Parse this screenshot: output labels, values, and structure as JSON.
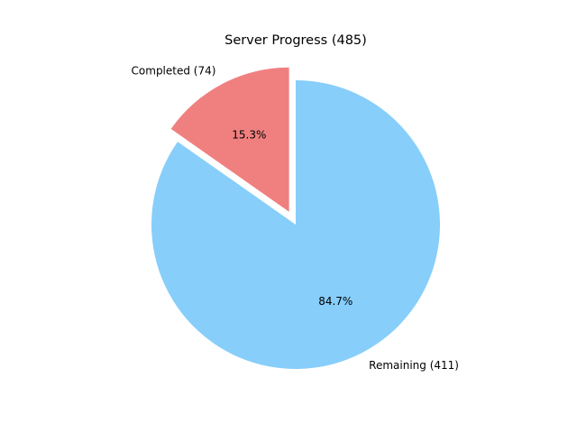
{
  "chart_data": {
    "type": "pie",
    "title": "Server Progress (485)",
    "slices": [
      {
        "label": "Completed (74)",
        "value": 74,
        "percent_label": "15.3%",
        "color": "#f08080",
        "exploded": true
      },
      {
        "label": "Remaining (411)",
        "value": 411,
        "percent_label": "84.7%",
        "color": "#87cefa",
        "exploded": false
      }
    ]
  }
}
